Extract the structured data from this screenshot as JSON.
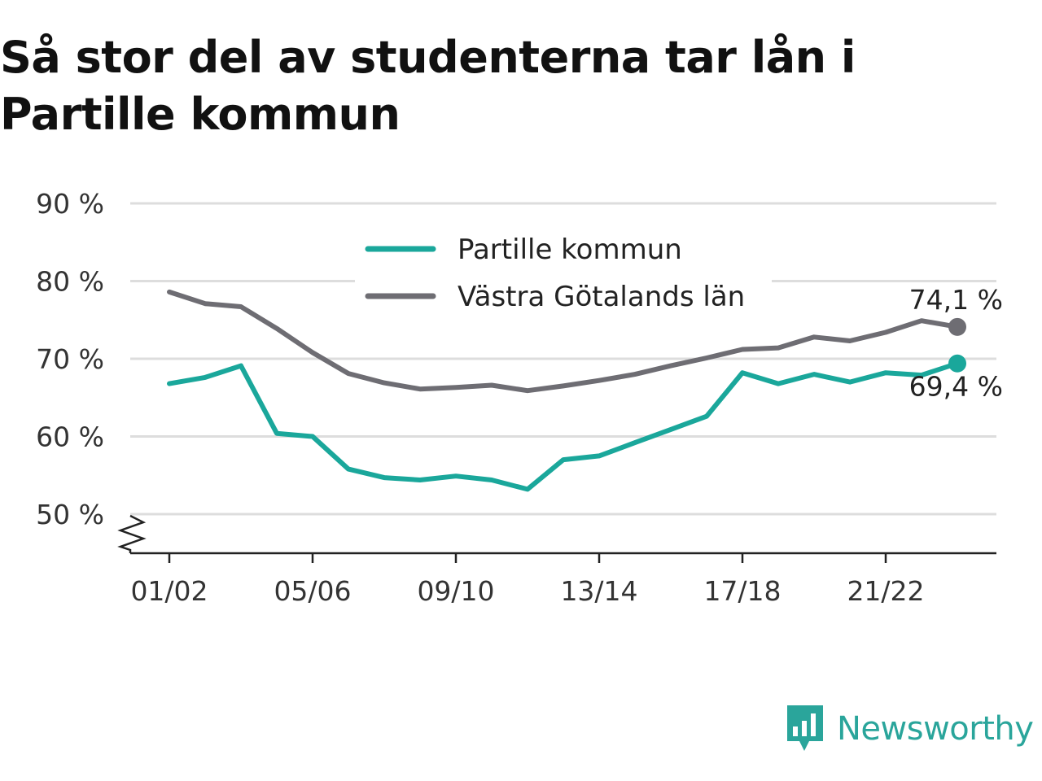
{
  "title": "Så stor del av studenterna tar lån i Partille kommun",
  "brand": "Newsworthy",
  "colors": {
    "partille": "#1aa79b",
    "vg": "#6e6d73",
    "grid": "#dddddd",
    "axis": "#222222",
    "brand": "#2aa59b"
  },
  "chart_data": {
    "type": "line",
    "title": "Så stor del av studenterna tar lån i Partille kommun",
    "xlabel": "",
    "ylabel": "",
    "categories": [
      "01/02",
      "02/03",
      "03/04",
      "04/05",
      "05/06",
      "06/07",
      "07/08",
      "08/09",
      "09/10",
      "10/11",
      "11/12",
      "12/13",
      "13/14",
      "14/15",
      "15/16",
      "16/17",
      "17/18",
      "18/19",
      "19/20",
      "20/21",
      "21/22",
      "22/23",
      "23/24"
    ],
    "x_tick_labels": [
      "01/02",
      "05/06",
      "09/10",
      "13/14",
      "17/18",
      "21/22"
    ],
    "y_tick_labels": [
      "50 %",
      "60 %",
      "70 %",
      "80 %",
      "90 %"
    ],
    "y_ticks": [
      50,
      60,
      70,
      80,
      90
    ],
    "ylim": [
      45,
      90
    ],
    "y_axis_break": true,
    "grid": true,
    "legend_position": "top-center",
    "series": [
      {
        "name": "Partille kommun",
        "color": "#1aa79b",
        "values": [
          66.8,
          67.6,
          69.1,
          60.4,
          60.0,
          55.8,
          54.7,
          54.4,
          54.9,
          54.4,
          53.2,
          57.0,
          57.5,
          59.2,
          60.9,
          62.6,
          68.2,
          66.8,
          68.0,
          67.0,
          68.2,
          67.9,
          69.4
        ],
        "end_label": "69,4 %"
      },
      {
        "name": "Västra Götalands län",
        "color": "#6e6d73",
        "values": [
          78.6,
          77.1,
          76.7,
          73.9,
          70.8,
          68.1,
          66.9,
          66.1,
          66.3,
          66.6,
          65.9,
          66.5,
          67.2,
          68.0,
          69.1,
          70.1,
          71.2,
          71.4,
          72.8,
          72.3,
          73.4,
          74.9,
          74.1
        ],
        "end_label": "74,1 %"
      }
    ]
  }
}
